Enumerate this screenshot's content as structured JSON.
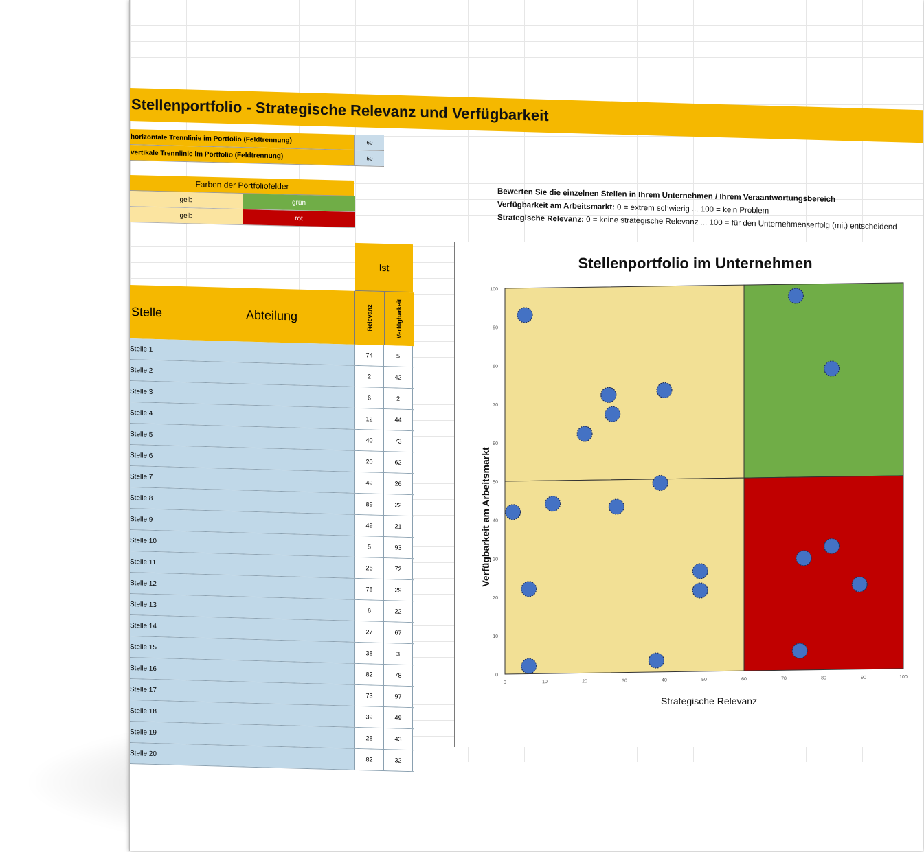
{
  "title": "Stellenportfolio - Strategische Relevanz und Verfügbarkeit",
  "params": [
    {
      "label": "horizontale Trennlinie im Portfolio (Feldtrennung)",
      "value": "60"
    },
    {
      "label": "vertikale Trennlinie im Portfolio (Feldtrennung)",
      "value": "50"
    }
  ],
  "colors_panel": {
    "header": "Farben der Portfoliofelder",
    "rows": [
      {
        "left": "gelb",
        "right": "grün",
        "right_color": "#70ad47"
      },
      {
        "left": "gelb",
        "right": "rot",
        "right_color": "#c00000"
      }
    ]
  },
  "instructions": {
    "line1": "Bewerten Sie die einzelnen Stellen in Ihrem Unternehmen / Ihrem Veraantwortungsbereich",
    "line2_bold": "Verfügbarkeit am Arbeitsmarkt:",
    "line2_rest": " 0 = extrem schwierig ... 100 = kein Problem",
    "line3_bold": "Strategische Relevanz:",
    "line3_rest": " 0 = keine strategische Relevanz ... 100 = für den Unternehmenserfolg (mit) entscheidend"
  },
  "table": {
    "group_header": "Ist",
    "col_stelle": "Stelle",
    "col_abteilung": "Abteilung",
    "col_relevanz": "Relevanz",
    "col_verfuegbarkeit": "Verfügbarkeit",
    "rows": [
      {
        "stelle": "Stelle 1",
        "abteilung": "",
        "relevanz": "74",
        "verfuegbarkeit": "5"
      },
      {
        "stelle": "Stelle 2",
        "abteilung": "",
        "relevanz": "2",
        "verfuegbarkeit": "42"
      },
      {
        "stelle": "Stelle 3",
        "abteilung": "",
        "relevanz": "6",
        "verfuegbarkeit": "2"
      },
      {
        "stelle": "Stelle 4",
        "abteilung": "",
        "relevanz": "12",
        "verfuegbarkeit": "44"
      },
      {
        "stelle": "Stelle 5",
        "abteilung": "",
        "relevanz": "40",
        "verfuegbarkeit": "73"
      },
      {
        "stelle": "Stelle 6",
        "abteilung": "",
        "relevanz": "20",
        "verfuegbarkeit": "62"
      },
      {
        "stelle": "Stelle 7",
        "abteilung": "",
        "relevanz": "49",
        "verfuegbarkeit": "26"
      },
      {
        "stelle": "Stelle 8",
        "abteilung": "",
        "relevanz": "89",
        "verfuegbarkeit": "22"
      },
      {
        "stelle": "Stelle 9",
        "abteilung": "",
        "relevanz": "49",
        "verfuegbarkeit": "21"
      },
      {
        "stelle": "Stelle 10",
        "abteilung": "",
        "relevanz": "5",
        "verfuegbarkeit": "93"
      },
      {
        "stelle": "Stelle 11",
        "abteilung": "",
        "relevanz": "26",
        "verfuegbarkeit": "72"
      },
      {
        "stelle": "Stelle 12",
        "abteilung": "",
        "relevanz": "75",
        "verfuegbarkeit": "29"
      },
      {
        "stelle": "Stelle 13",
        "abteilung": "",
        "relevanz": "6",
        "verfuegbarkeit": "22"
      },
      {
        "stelle": "Stelle 14",
        "abteilung": "",
        "relevanz": "27",
        "verfuegbarkeit": "67"
      },
      {
        "stelle": "Stelle 15",
        "abteilung": "",
        "relevanz": "38",
        "verfuegbarkeit": "3"
      },
      {
        "stelle": "Stelle 16",
        "abteilung": "",
        "relevanz": "82",
        "verfuegbarkeit": "78"
      },
      {
        "stelle": "Stelle 17",
        "abteilung": "",
        "relevanz": "73",
        "verfuegbarkeit": "97"
      },
      {
        "stelle": "Stelle 18",
        "abteilung": "",
        "relevanz": "39",
        "verfuegbarkeit": "49"
      },
      {
        "stelle": "Stelle 19",
        "abteilung": "",
        "relevanz": "28",
        "verfuegbarkeit": "43"
      },
      {
        "stelle": "Stelle 20",
        "abteilung": "",
        "relevanz": "82",
        "verfuegbarkeit": "32"
      }
    ]
  },
  "chart_data": {
    "type": "scatter",
    "title": "Stellenportfolio im Unternehmen",
    "xlabel": "Strategische Relevanz",
    "ylabel": "Verfügbarkeit am Arbeitsmarkt",
    "xlim": [
      0,
      100
    ],
    "ylim": [
      0,
      100
    ],
    "x_ticks": [
      0,
      10,
      20,
      30,
      40,
      50,
      60,
      70,
      80,
      90,
      100
    ],
    "y_ticks": [
      0,
      10,
      20,
      30,
      40,
      50,
      60,
      70,
      80,
      90,
      100
    ],
    "x_split": 60,
    "y_split": 50,
    "quadrants": [
      {
        "x": [
          0,
          60
        ],
        "y": [
          50,
          100
        ],
        "color": "#f2e095"
      },
      {
        "x": [
          60,
          100
        ],
        "y": [
          50,
          100
        ],
        "color": "#70ad47"
      },
      {
        "x": [
          0,
          60
        ],
        "y": [
          0,
          50
        ],
        "color": "#f2e095"
      },
      {
        "x": [
          60,
          100
        ],
        "y": [
          0,
          50
        ],
        "color": "#c00000"
      }
    ],
    "point_color": "#4472c4",
    "x": [
      74,
      2,
      6,
      12,
      40,
      20,
      49,
      89,
      49,
      5,
      26,
      75,
      6,
      27,
      38,
      82,
      73,
      39,
      28,
      82
    ],
    "y": [
      5,
      42,
      2,
      44,
      73,
      62,
      26,
      22,
      21,
      93,
      72,
      29,
      22,
      67,
      3,
      78,
      97,
      49,
      43,
      32
    ]
  }
}
